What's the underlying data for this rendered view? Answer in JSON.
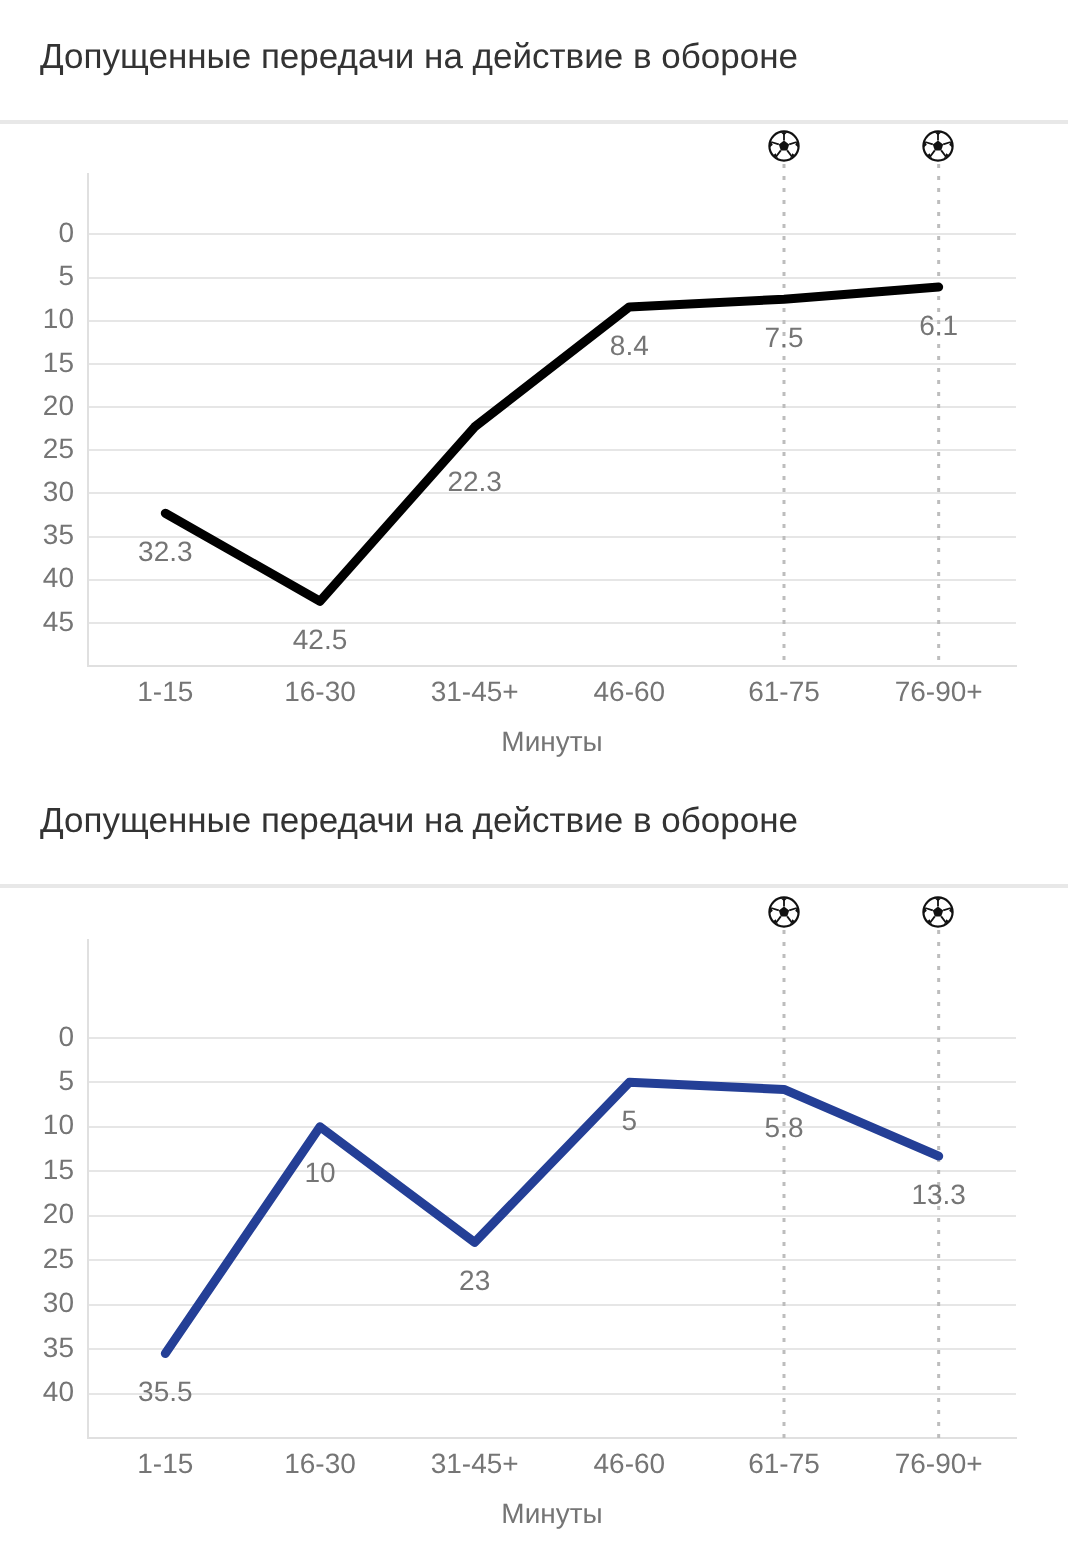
{
  "chart_data": [
    {
      "type": "line",
      "title": "Допущенные передачи на действие в обороне",
      "xlabel": "Минуты",
      "categories": [
        "1-15",
        "16-30",
        "31-45+",
        "46-60",
        "61-75",
        "76-90+"
      ],
      "series": [
        {
          "color": "#000000",
          "values": [
            32.3,
            42.5,
            22.3,
            8.4,
            7.5,
            6.1
          ]
        }
      ],
      "ylim": [
        50,
        -7
      ],
      "yticks": [
        0,
        5,
        10,
        15,
        20,
        25,
        30,
        35,
        40,
        45
      ],
      "grid": "y",
      "legend": false,
      "marker": "none",
      "line_style": "solid",
      "data_labels": true,
      "ref_lines": [
        {
          "axis": "x",
          "value": "61-75",
          "color": "#bdbdbd",
          "line_style": "dotted"
        },
        {
          "axis": "x",
          "value": "76-90+",
          "color": "#bdbdbd",
          "line_style": "dotted"
        }
      ]
    },
    {
      "type": "line",
      "title": "Допущенные передачи на действие в обороне",
      "xlabel": "Минуты",
      "categories": [
        "1-15",
        "16-30",
        "31-45+",
        "46-60",
        "61-75",
        "76-90+"
      ],
      "series": [
        {
          "color": "#243f96",
          "values": [
            35.5,
            10,
            23,
            5,
            5.8,
            13.3
          ]
        }
      ],
      "ylim": [
        45,
        -11
      ],
      "yticks": [
        0,
        5,
        10,
        15,
        20,
        25,
        30,
        35,
        40
      ],
      "grid": "y",
      "legend": false,
      "marker": "none",
      "line_style": "solid",
      "data_labels": true,
      "ref_lines": [
        {
          "axis": "x",
          "value": "61-75",
          "color": "#bdbdbd",
          "line_style": "dotted"
        },
        {
          "axis": "x",
          "value": "76-90+",
          "color": "#bdbdbd",
          "line_style": "dotted"
        }
      ]
    }
  ]
}
